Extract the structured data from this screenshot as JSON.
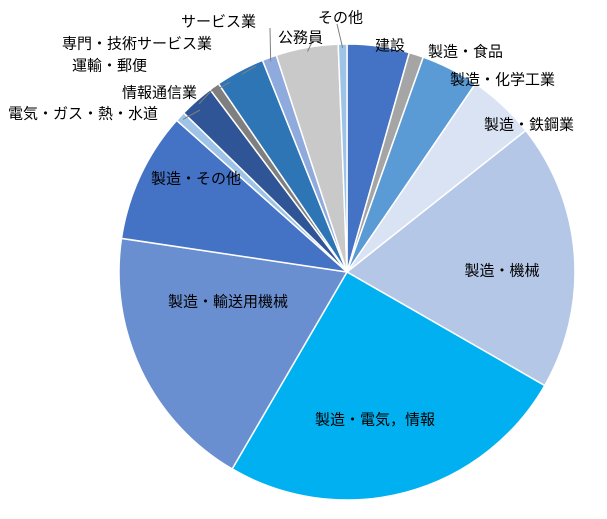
{
  "chart_data": {
    "type": "pie",
    "title": "",
    "start_angle_deg": 0,
    "direction": "clockwise",
    "slices": [
      {
        "label": "建設",
        "value": 4.3,
        "color": "#4472C4"
      },
      {
        "label": "製造・食品",
        "value": 1.0,
        "color": "#A5A5A5"
      },
      {
        "label": "製造・化学工業",
        "value": 4.0,
        "color": "#5B9BD5"
      },
      {
        "label": "製造・鉄鋼業",
        "value": 4.7,
        "color": "#DAE3F3"
      },
      {
        "label": "製造・機械",
        "value": 18.5,
        "color": "#B4C7E7"
      },
      {
        "label": "製造・電気，情報",
        "value": 24.5,
        "color": "#00B0F0"
      },
      {
        "label": "製造・輸送用機械",
        "value": 18.5,
        "color": "#6A8FD0"
      },
      {
        "label": "製造・その他",
        "value": 9.0,
        "color": "#4472C4"
      },
      {
        "label": "電気・ガス・熱・水道",
        "value": 0.7,
        "color": "#9DC3E6"
      },
      {
        "label": "情報通信業",
        "value": 2.4,
        "color": "#2F5597"
      },
      {
        "label": "運輸・郵便",
        "value": 0.7,
        "color": "#7F7F7F"
      },
      {
        "label": "専門・技術サービス業",
        "value": 3.4,
        "color": "#2E75B6"
      },
      {
        "label": "サービス業",
        "value": 1.0,
        "color": "#8FAADC"
      },
      {
        "label": "公務員",
        "value": 4.3,
        "color": "#C9C9C9"
      },
      {
        "label": "その他",
        "value": 0.6,
        "color": "#9DC3E6"
      }
    ]
  }
}
